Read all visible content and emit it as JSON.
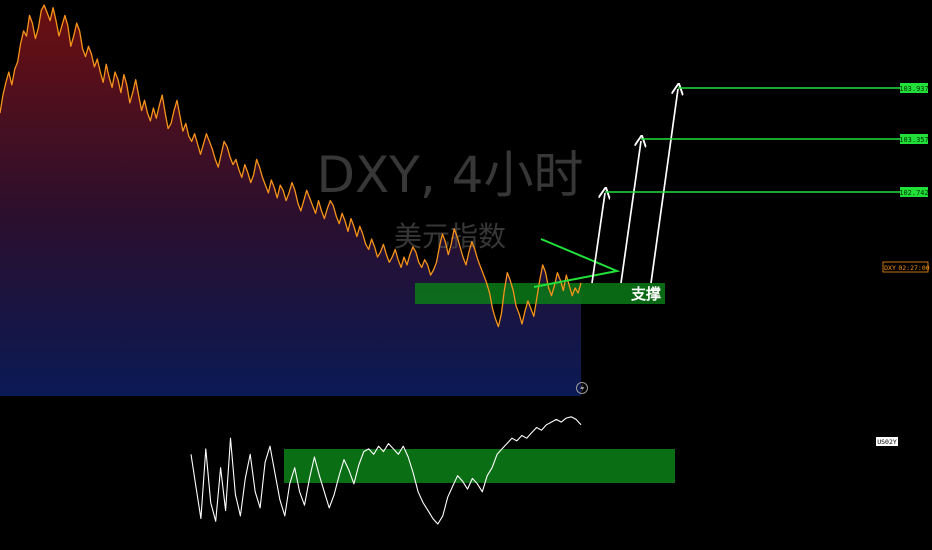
{
  "chart_data": [
    {
      "type": "area",
      "watermark": {
        "symbol": "DXY, 4小时",
        "name": "美元指数"
      },
      "series": [
        {
          "values": [
            96,
            103,
            108,
            112,
            107,
            113,
            116,
            123,
            128,
            126,
            134,
            131,
            125,
            129,
            136,
            138,
            135,
            132,
            137,
            132,
            126,
            130,
            134,
            130,
            122,
            126,
            131,
            128,
            121,
            118,
            122,
            119,
            114,
            117,
            112,
            108,
            115,
            110,
            106,
            112,
            109,
            104,
            111,
            107,
            100,
            104,
            109,
            103,
            97,
            101,
            96,
            93,
            98,
            94,
            99,
            103,
            96,
            90,
            92,
            97,
            101,
            95,
            89,
            92,
            87,
            85,
            88,
            84,
            80,
            84,
            88,
            85,
            82,
            78,
            75,
            80,
            85,
            83,
            79,
            76,
            78,
            74,
            71,
            76,
            73,
            69,
            72,
            78,
            75,
            71,
            68,
            65,
            70,
            67,
            63,
            68,
            66,
            62,
            65,
            69,
            66,
            61,
            58,
            62,
            66,
            63,
            60,
            57,
            62,
            58,
            55,
            59,
            62,
            60,
            56,
            53,
            57,
            54,
            50,
            55,
            52,
            48,
            52,
            49,
            45,
            43,
            47,
            44,
            40,
            42,
            45,
            41,
            38,
            40,
            43,
            39,
            36,
            40,
            37,
            41,
            44,
            42,
            38,
            36,
            39,
            37,
            33,
            35,
            38,
            44,
            49,
            46,
            41,
            45,
            51,
            48,
            44,
            40,
            37,
            42,
            46,
            43,
            39,
            36,
            33,
            30,
            26,
            20,
            16,
            13,
            18,
            27,
            34,
            31,
            27,
            21,
            18,
            14,
            19,
            23,
            20,
            17,
            24,
            31,
            37,
            34,
            28,
            25,
            29,
            34,
            31,
            27,
            33,
            29,
            25,
            28,
            26,
            30
          ],
          "color": "#f7931a"
        }
      ]
    },
    {
      "type": "line",
      "series": [
        {
          "values": [
            58,
            34,
            10,
            62,
            22,
            8,
            48,
            16,
            70,
            28,
            12,
            40,
            58,
            30,
            18,
            52,
            64,
            44,
            24,
            12,
            36,
            48,
            30,
            20,
            40,
            56,
            42,
            30,
            18,
            28,
            42,
            54,
            46,
            36,
            50,
            60,
            62,
            58,
            64,
            60,
            66,
            62,
            58,
            64,
            56,
            44,
            30,
            22,
            16,
            10,
            6,
            12,
            26,
            34,
            42,
            38,
            32,
            40,
            36,
            30,
            42,
            48,
            58,
            62,
            66,
            70,
            68,
            72,
            70,
            74,
            78,
            76,
            80,
            82,
            84,
            82,
            85,
            86,
            84,
            80
          ],
          "color": "#ffffff"
        }
      ],
      "tag": "US02Y"
    }
  ],
  "annotations": {
    "support_label": "支撑",
    "targets": [
      {
        "value": "102.742",
        "color": "#22e03a"
      },
      {
        "value": "103.357",
        "color": "#22e03a"
      },
      {
        "value": "103.937",
        "color": "#22e03a"
      }
    ],
    "price_tag": {
      "symbol": "DXY",
      "time": "02:27:00",
      "color": "#f7931a"
    },
    "colors": {
      "support_zone": "#0b7a17",
      "triangle": "#22e03a",
      "arrows": "#ffffff",
      "area_top": "#6b0f10",
      "area_bottom": "#0a1a55"
    },
    "icons": [
      "lightning-icon"
    ]
  }
}
